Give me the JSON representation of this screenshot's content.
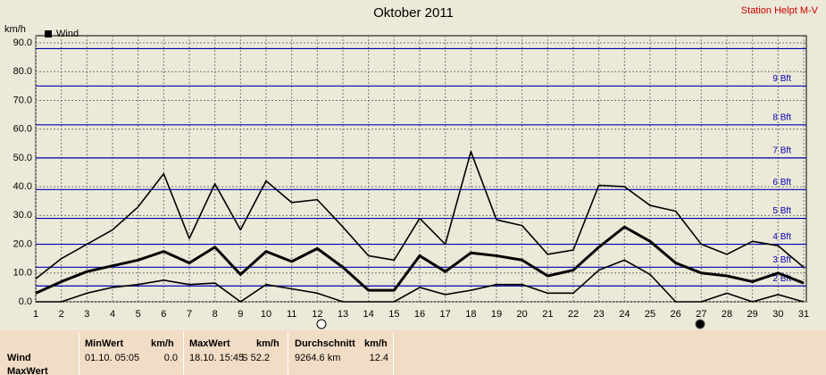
{
  "chart_data": {
    "type": "line",
    "title": "Oktober 2011",
    "station": "Station Helpt M-V",
    "y_label": "km/h",
    "legend": "Wind",
    "x": [
      1,
      2,
      3,
      4,
      5,
      6,
      7,
      8,
      9,
      10,
      11,
      12,
      13,
      14,
      15,
      16,
      17,
      18,
      19,
      20,
      21,
      22,
      23,
      24,
      25,
      26,
      27,
      28,
      29,
      30,
      31
    ],
    "xlim": [
      1,
      31
    ],
    "xticks": [
      1,
      2,
      3,
      4,
      5,
      6,
      7,
      8,
      9,
      10,
      11,
      12,
      13,
      14,
      15,
      16,
      17,
      18,
      19,
      20,
      21,
      22,
      23,
      24,
      25,
      26,
      27,
      28,
      29,
      30,
      31
    ],
    "ylim": [
      0,
      90
    ],
    "yticks": [
      {
        "value": 0,
        "label": "0.0"
      },
      {
        "value": 10,
        "label": "10.0"
      },
      {
        "value": 20,
        "label": "20.0"
      },
      {
        "value": 30,
        "label": "30.0"
      },
      {
        "value": 40,
        "label": "40.0"
      },
      {
        "value": 50,
        "label": "50.0"
      },
      {
        "value": 60,
        "label": "60.0"
      },
      {
        "value": 70,
        "label": "70.0"
      },
      {
        "value": 80,
        "label": "80.0"
      },
      {
        "value": 90,
        "label": "90.0"
      }
    ],
    "grid": true,
    "bft_color": "#0000b0",
    "bft_lines": [
      {
        "value": 5.5,
        "label": "2 Bft"
      },
      {
        "value": 12,
        "label": "3 Bft"
      },
      {
        "value": 20,
        "label": "4 Bft"
      },
      {
        "value": 29,
        "label": "5 Bft"
      },
      {
        "value": 39,
        "label": "6 Bft"
      },
      {
        "value": 50,
        "label": "7 Bft"
      },
      {
        "value": 61.5,
        "label": "8 Bft"
      },
      {
        "value": 75,
        "label": "9 Bft"
      },
      {
        "value": 88,
        "label": null
      }
    ],
    "series": [
      {
        "color": "#000000",
        "line_width": 1.6,
        "values": [
          8,
          15,
          20,
          25,
          33,
          44.5,
          22,
          41,
          25,
          42,
          34.5,
          35.5,
          26,
          16,
          14.5,
          29,
          20,
          52.2,
          28.5,
          26.5,
          16.5,
          18,
          40.5,
          40,
          33.5,
          31.5,
          20,
          16.5,
          21,
          19.5,
          12
        ]
      },
      {
        "color": "#000000",
        "line_width": 3,
        "values": [
          3,
          7,
          10.5,
          12.5,
          14.5,
          17.5,
          13.5,
          19,
          9.5,
          17.5,
          14,
          18.5,
          12,
          4,
          4,
          16,
          10.5,
          17,
          16,
          14.5,
          9,
          11,
          19,
          26,
          21,
          13.5,
          10,
          9,
          7,
          10,
          6.5
        ]
      },
      {
        "color": "#000000",
        "line_width": 1.6,
        "values": [
          0,
          0,
          3,
          5,
          6,
          7.5,
          6,
          6.5,
          0,
          6,
          4.5,
          3,
          0,
          0,
          0,
          5,
          2.5,
          4,
          6,
          6,
          3,
          3,
          11,
          14.5,
          9.5,
          0,
          0,
          3,
          0,
          2.5,
          0
        ]
      }
    ]
  },
  "table": {
    "header": [
      "MinWert",
      "km/h",
      "MaxWert",
      "km/h",
      "Durchschnitt",
      "km/h"
    ],
    "rows": [
      [
        "Wind",
        "01.10. 05:05",
        "0.0",
        "18.10. 15:45",
        "S 52.2",
        "9264.6 km",
        "12.4"
      ],
      [
        "MaxWert"
      ]
    ]
  }
}
